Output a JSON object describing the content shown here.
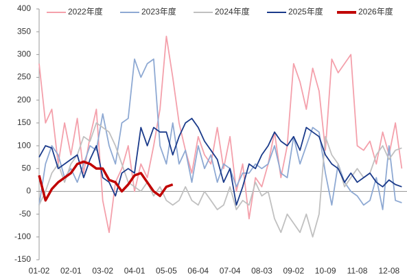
{
  "chart_data": {
    "type": "line",
    "categories": [
      "01-02",
      null,
      null,
      null,
      null,
      "02-01",
      null,
      null,
      null,
      null,
      "03-02",
      null,
      null,
      null,
      null,
      "04-01",
      null,
      null,
      null,
      null,
      "05-05",
      null,
      null,
      null,
      null,
      "06-04",
      null,
      null,
      null,
      null,
      "07-04",
      null,
      null,
      null,
      null,
      "08-03",
      null,
      null,
      null,
      null,
      "09-02",
      null,
      null,
      null,
      null,
      "10-09",
      null,
      null,
      null,
      null,
      "11-08",
      null,
      null,
      null,
      null,
      "12-08",
      null,
      null
    ],
    "ylim": [
      -150,
      400
    ],
    "yticks": [
      -150,
      -100,
      -50,
      0,
      50,
      100,
      150,
      200,
      250,
      300,
      350,
      400
    ],
    "legend": "top",
    "series": [
      {
        "name": "2022年度",
        "color": "#f4a0ab",
        "values": [
          280,
          150,
          180,
          60,
          150,
          80,
          160,
          40,
          120,
          180,
          -20,
          -90,
          20,
          50,
          100,
          0,
          60,
          30,
          100,
          180,
          340,
          250,
          150,
          90,
          40,
          120,
          80,
          60,
          140,
          50,
          120,
          0,
          60,
          -60,
          30,
          10,
          60,
          130,
          30,
          100,
          280,
          240,
          180,
          270,
          220,
          90,
          290,
          260,
          280,
          300,
          100,
          90,
          110,
          60,
          130,
          80,
          150,
          50
        ]
      },
      {
        "name": "2023年度",
        "color": "#8ea9d3",
        "values": [
          -30,
          60,
          100,
          80,
          30,
          50,
          20,
          60,
          100,
          90,
          170,
          100,
          60,
          150,
          160,
          290,
          250,
          280,
          290,
          100,
          60,
          150,
          60,
          90,
          20,
          100,
          50,
          80,
          20,
          60,
          50,
          10,
          40,
          40,
          60,
          50,
          60,
          100,
          40,
          30,
          120,
          60,
          100,
          140,
          130,
          40,
          -30,
          60,
          20,
          0,
          -10,
          -30,
          -20,
          30,
          -40,
          100,
          -20,
          -25
        ]
      },
      {
        "name": "2024年度",
        "color": "#c0c0c0",
        "values": [
          -30,
          0,
          40,
          60,
          20,
          60,
          80,
          120,
          110,
          150,
          140,
          130,
          100,
          60,
          20,
          10,
          0,
          20,
          -10,
          10,
          -20,
          -30,
          -20,
          10,
          -20,
          -30,
          0,
          -20,
          -40,
          -30,
          10,
          -40,
          -20,
          -30,
          20,
          -10,
          0,
          -60,
          -90,
          -50,
          -70,
          -90,
          -50,
          -100,
          -50,
          120,
          80,
          60,
          10,
          30,
          50,
          30,
          40,
          80,
          100,
          70,
          90,
          95
        ]
      },
      {
        "name": "2025年度",
        "color": "#1a3a8a",
        "values": [
          75,
          100,
          95,
          50,
          60,
          70,
          80,
          30,
          70,
          100,
          30,
          20,
          -10,
          40,
          50,
          40,
          140,
          100,
          140,
          130,
          130,
          80,
          120,
          150,
          160,
          140,
          110,
          90,
          70,
          20,
          50,
          -30,
          10,
          60,
          50,
          80,
          100,
          130,
          110,
          100,
          120,
          90,
          140,
          130,
          120,
          80,
          60,
          50,
          20,
          40,
          20,
          30,
          40,
          20,
          10,
          25,
          15,
          10
        ]
      },
      {
        "name": "2026年度",
        "color": "#c00000",
        "values": [
          35,
          -20,
          5,
          20,
          30,
          40,
          60,
          65,
          60,
          50,
          50,
          25,
          20,
          0,
          15,
          35,
          40,
          20,
          0,
          -10,
          10,
          15,
          null,
          null,
          null,
          null,
          null,
          null,
          null,
          null,
          null,
          null,
          null,
          null,
          null,
          null,
          null,
          null,
          null,
          null,
          null,
          null,
          null,
          null,
          null,
          null,
          null,
          null,
          null,
          null,
          null,
          null,
          null,
          null,
          null,
          null,
          null,
          null
        ]
      }
    ]
  }
}
